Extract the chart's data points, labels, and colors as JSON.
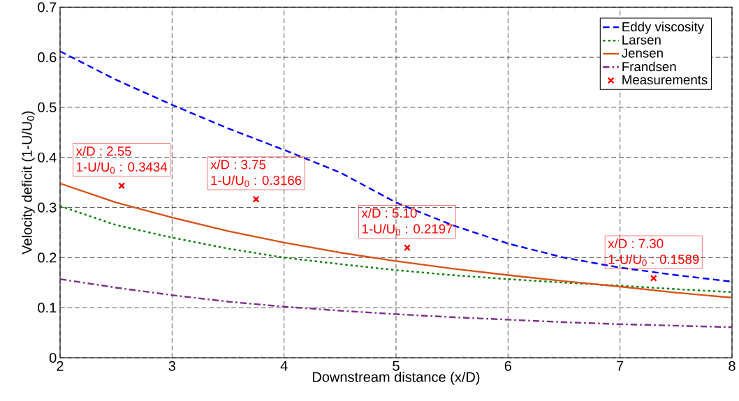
{
  "chart_data": {
    "type": "line",
    "xlabel": "Downstream distance (x/D)",
    "ylabel": "Velocity deficit (1-U/U$_{0}$)",
    "xlim": [
      2,
      8
    ],
    "ylim": [
      0,
      0.7
    ],
    "xticks": [
      2,
      3,
      4,
      5,
      6,
      7,
      8
    ],
    "yticks": [
      0,
      0.1,
      0.2,
      0.3,
      0.4,
      0.5,
      0.6,
      0.7
    ],
    "grid": true,
    "legend": "top right",
    "series": [
      {
        "name": "Eddy viscosity",
        "color": "#0000ff",
        "line_style": "dashed",
        "marker": "none",
        "x": [
          2,
          2.5,
          3,
          3.5,
          4,
          4.5,
          5,
          5.5,
          6,
          6.5,
          7,
          7.5,
          8
        ],
        "values": [
          0.612,
          0.555,
          0.505,
          0.458,
          0.415,
          0.37,
          0.31,
          0.265,
          0.228,
          0.2,
          0.18,
          0.165,
          0.152
        ]
      },
      {
        "name": "Larsen",
        "color": "#008000",
        "line_style": "dotted",
        "marker": "none",
        "x": [
          2,
          2.5,
          3,
          3.5,
          4,
          4.5,
          5,
          5.5,
          6,
          6.5,
          7,
          7.5,
          8
        ],
        "values": [
          0.303,
          0.265,
          0.24,
          0.218,
          0.2,
          0.187,
          0.175,
          0.165,
          0.157,
          0.15,
          0.144,
          0.137,
          0.131
        ]
      },
      {
        "name": "Jensen",
        "color": "#d95319",
        "line_style": "solid",
        "marker": "none",
        "x": [
          2,
          2.5,
          3,
          3.5,
          4,
          4.5,
          5,
          5.5,
          6,
          6.5,
          7,
          7.5,
          8
        ],
        "values": [
          0.348,
          0.31,
          0.28,
          0.253,
          0.23,
          0.21,
          0.193,
          0.178,
          0.165,
          0.153,
          0.142,
          0.13,
          0.12
        ]
      },
      {
        "name": "Frandsen",
        "color": "#7e2f8e",
        "line_style": "dashdot",
        "marker": "none",
        "x": [
          2,
          2.5,
          3,
          3.5,
          4,
          4.5,
          5,
          5.5,
          6,
          6.5,
          7,
          7.5,
          8
        ],
        "values": [
          0.157,
          0.14,
          0.125,
          0.112,
          0.102,
          0.094,
          0.087,
          0.081,
          0.076,
          0.071,
          0.067,
          0.064,
          0.061
        ]
      },
      {
        "name": "Measurements",
        "type": "scatter",
        "color": "#ff0000",
        "marker": "cross",
        "x": [
          2.55,
          3.75,
          5.1,
          7.3
        ],
        "values": [
          0.3434,
          0.3166,
          0.2197,
          0.1589
        ]
      }
    ],
    "annotations": [
      {
        "text": "x/D : 2.55",
        "x": 2.55,
        "y": 0.3434
      },
      {
        "text": "1-U/U$_{0}$ : 0.3434",
        "x": 2.55,
        "y": 0.3434
      },
      {
        "text": "x/D : 3.75",
        "x": 3.75,
        "y": 0.3166
      },
      {
        "text": "1-U/U$_{0}$ : 0.3166",
        "x": 3.75,
        "y": 0.3166
      },
      {
        "text": "x/D : 5.10",
        "x": 5.1,
        "y": 0.2197
      },
      {
        "text": "1-U/U$_{0}$ : 0.2197",
        "x": 5.1,
        "y": 0.2197
      },
      {
        "text": "x/D : 7.30",
        "x": 7.3,
        "y": 0.1589
      },
      {
        "text": "1-U/U$_{0}$ : 0.1589",
        "x": 7.3,
        "y": 0.1589
      }
    ]
  }
}
